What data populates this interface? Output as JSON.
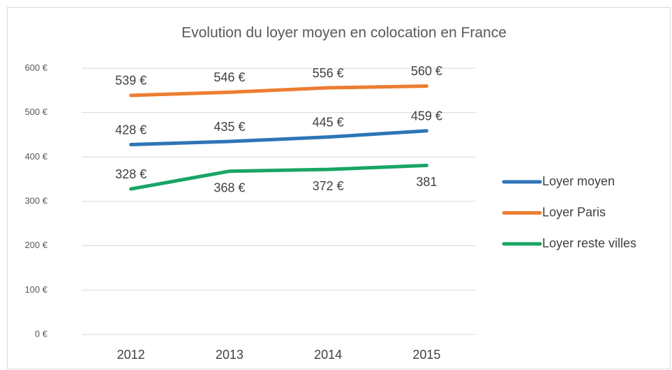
{
  "chart_data": {
    "type": "line",
    "title": "Evolution du loyer moyen en colocation en France",
    "categories": [
      "2012",
      "2013",
      "2014",
      "2015"
    ],
    "series": [
      {
        "name": "Loyer moyen",
        "color": "#2e75b6",
        "values": [
          428,
          435,
          445,
          459
        ],
        "value_labels": [
          "428 €",
          "435 €",
          "445 €",
          "459 €"
        ]
      },
      {
        "name": "Loyer Paris",
        "color": "#ed7d31",
        "values": [
          539,
          546,
          556,
          560
        ],
        "value_labels": [
          "539 €",
          "546 €",
          "556 €",
          "560 €"
        ]
      },
      {
        "name": "Loyer reste villes",
        "color": "#18a565",
        "values": [
          328,
          368,
          372,
          381
        ],
        "value_labels": [
          "328 €",
          "368 €",
          "372 €",
          "381"
        ]
      }
    ],
    "ylim": [
      0,
      600
    ],
    "yticks": [
      {
        "value": 0,
        "label": "0 €"
      },
      {
        "value": 100,
        "label": "100 €"
      },
      {
        "value": 200,
        "label": "200 €"
      },
      {
        "value": 300,
        "label": "300 €"
      },
      {
        "value": 400,
        "label": "400 €"
      },
      {
        "value": 500,
        "label": "500 €"
      },
      {
        "value": 600,
        "label": "600 €"
      }
    ],
    "grid": true,
    "legend": "right"
  }
}
